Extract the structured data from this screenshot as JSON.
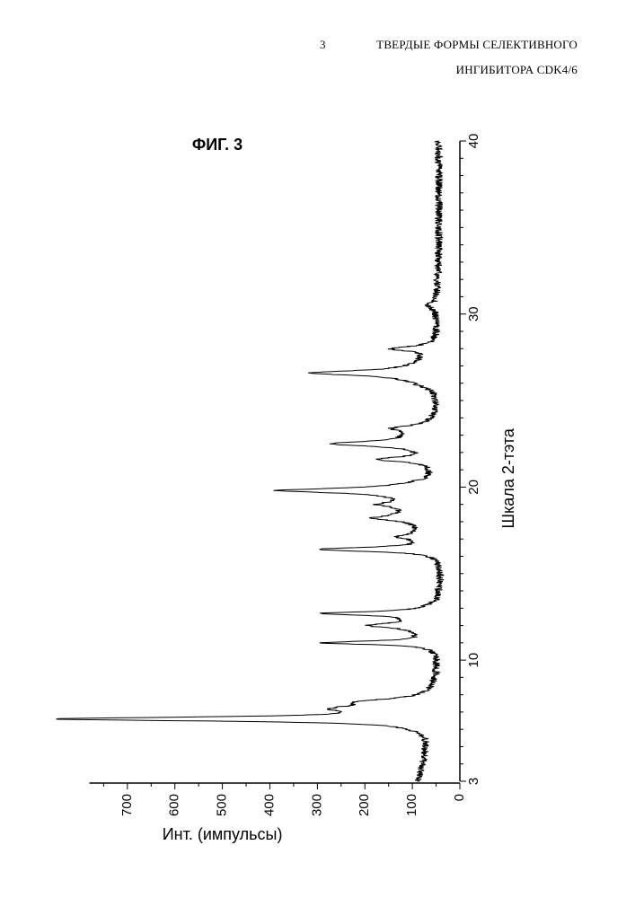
{
  "header": {
    "page_number": "3",
    "title_line1": "ТВЕРДЫЕ ФОРМЫ СЕЛЕКТИВНОГО",
    "title_line2": "ИНГИБИТОРА CDK4/6"
  },
  "chart_data": {
    "type": "line",
    "title": "ФИГ. 3",
    "xlabel": "Шкала 2-тэта",
    "ylabel": "Инт. (импульсы)",
    "xlim": [
      3,
      40
    ],
    "ylim": [
      0,
      780
    ],
    "xticks": [
      "3",
      "10",
      "20",
      "30",
      "40"
    ],
    "yticks": [
      "0",
      "100",
      "200",
      "300",
      "400",
      "500",
      "600",
      "700"
    ],
    "orientation": "rotated 90° (2θ axis runs top-to-bottom along right side)",
    "series": [
      {
        "baseline": [
          [
            3,
            85
          ],
          [
            3.5,
            80
          ],
          [
            4.5,
            70
          ],
          [
            5.5,
            58
          ],
          [
            6.5,
            68
          ],
          [
            7.5,
            62
          ],
          [
            8,
            50
          ],
          [
            9,
            44
          ],
          [
            10,
            42
          ],
          [
            11,
            45
          ],
          [
            11.5,
            70
          ],
          [
            12,
            85
          ],
          [
            12.5,
            80
          ],
          [
            13.5,
            42
          ],
          [
            15,
            36
          ],
          [
            16,
            38
          ],
          [
            16.8,
            60
          ],
          [
            17.2,
            90
          ],
          [
            17.7,
            80
          ],
          [
            18.5,
            110
          ],
          [
            19.2,
            100
          ],
          [
            19.8,
            130
          ],
          [
            20.5,
            60
          ],
          [
            21,
            50
          ],
          [
            22,
            60
          ],
          [
            23,
            90
          ],
          [
            23.5,
            60
          ],
          [
            24.5,
            45
          ],
          [
            25.5,
            50
          ],
          [
            26.5,
            120
          ],
          [
            27.2,
            80
          ],
          [
            28,
            55
          ],
          [
            29,
            45
          ],
          [
            30,
            48
          ],
          [
            32,
            46
          ],
          [
            34,
            44
          ],
          [
            36,
            44
          ],
          [
            38,
            44
          ],
          [
            40,
            45
          ]
        ],
        "peaks": [
          {
            "x": 6.6,
            "y": 760,
            "w": 0.14
          },
          {
            "x": 7.2,
            "y": 150,
            "w": 0.25
          },
          {
            "x": 7.6,
            "y": 100,
            "w": 0.2
          },
          {
            "x": 11.0,
            "y": 240,
            "w": 0.12
          },
          {
            "x": 12.0,
            "y": 100,
            "w": 0.15
          },
          {
            "x": 12.7,
            "y": 215,
            "w": 0.12
          },
          {
            "x": 16.4,
            "y": 250,
            "w": 0.14
          },
          {
            "x": 17.1,
            "y": 40,
            "w": 0.12
          },
          {
            "x": 18.2,
            "y": 80,
            "w": 0.15
          },
          {
            "x": 19.0,
            "y": 60,
            "w": 0.15
          },
          {
            "x": 19.8,
            "y": 250,
            "w": 0.15
          },
          {
            "x": 21.6,
            "y": 110,
            "w": 0.15
          },
          {
            "x": 22.5,
            "y": 190,
            "w": 0.17
          },
          {
            "x": 23.4,
            "y": 70,
            "w": 0.18
          },
          {
            "x": 26.6,
            "y": 200,
            "w": 0.15
          },
          {
            "x": 28.0,
            "y": 90,
            "w": 0.15
          },
          {
            "x": 30.5,
            "y": 20,
            "w": 0.2
          }
        ]
      }
    ]
  }
}
